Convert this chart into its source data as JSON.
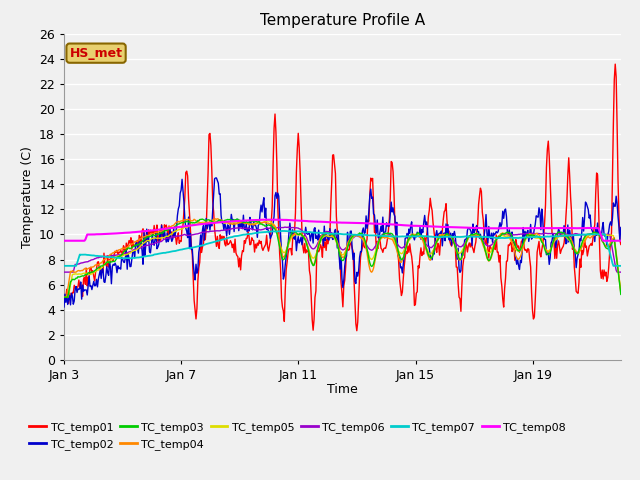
{
  "title": "Temperature Profile A",
  "xlabel": "Time",
  "ylabel": "Temperature (C)",
  "ylim": [
    0,
    26
  ],
  "yticks": [
    0,
    2,
    4,
    6,
    8,
    10,
    12,
    14,
    16,
    18,
    20,
    22,
    24,
    26
  ],
  "xtick_labels": [
    "Jan 3",
    "Jan 7",
    "Jan 11",
    "Jan 15",
    "Jan 19"
  ],
  "xtick_positions": [
    0,
    4,
    8,
    12,
    16
  ],
  "xlim": [
    0,
    19
  ],
  "fig_bg": "#f0f0f0",
  "plot_bg": "#f0f0f0",
  "grid_color": "#ffffff",
  "annotation_text": "HS_met",
  "annotation_fg": "#cc0000",
  "annotation_bg": "#e8d070",
  "annotation_border": "#886600",
  "series_colors": {
    "TC_temp01": "#ff0000",
    "TC_temp02": "#0000cc",
    "TC_temp03": "#00cc00",
    "TC_temp04": "#ff8800",
    "TC_temp05": "#dddd00",
    "TC_temp06": "#9900cc",
    "TC_temp07": "#00cccc",
    "TC_temp08": "#ff00ff"
  },
  "title_fontsize": 11,
  "axis_label_fontsize": 9,
  "tick_fontsize": 9,
  "legend_fontsize": 8
}
